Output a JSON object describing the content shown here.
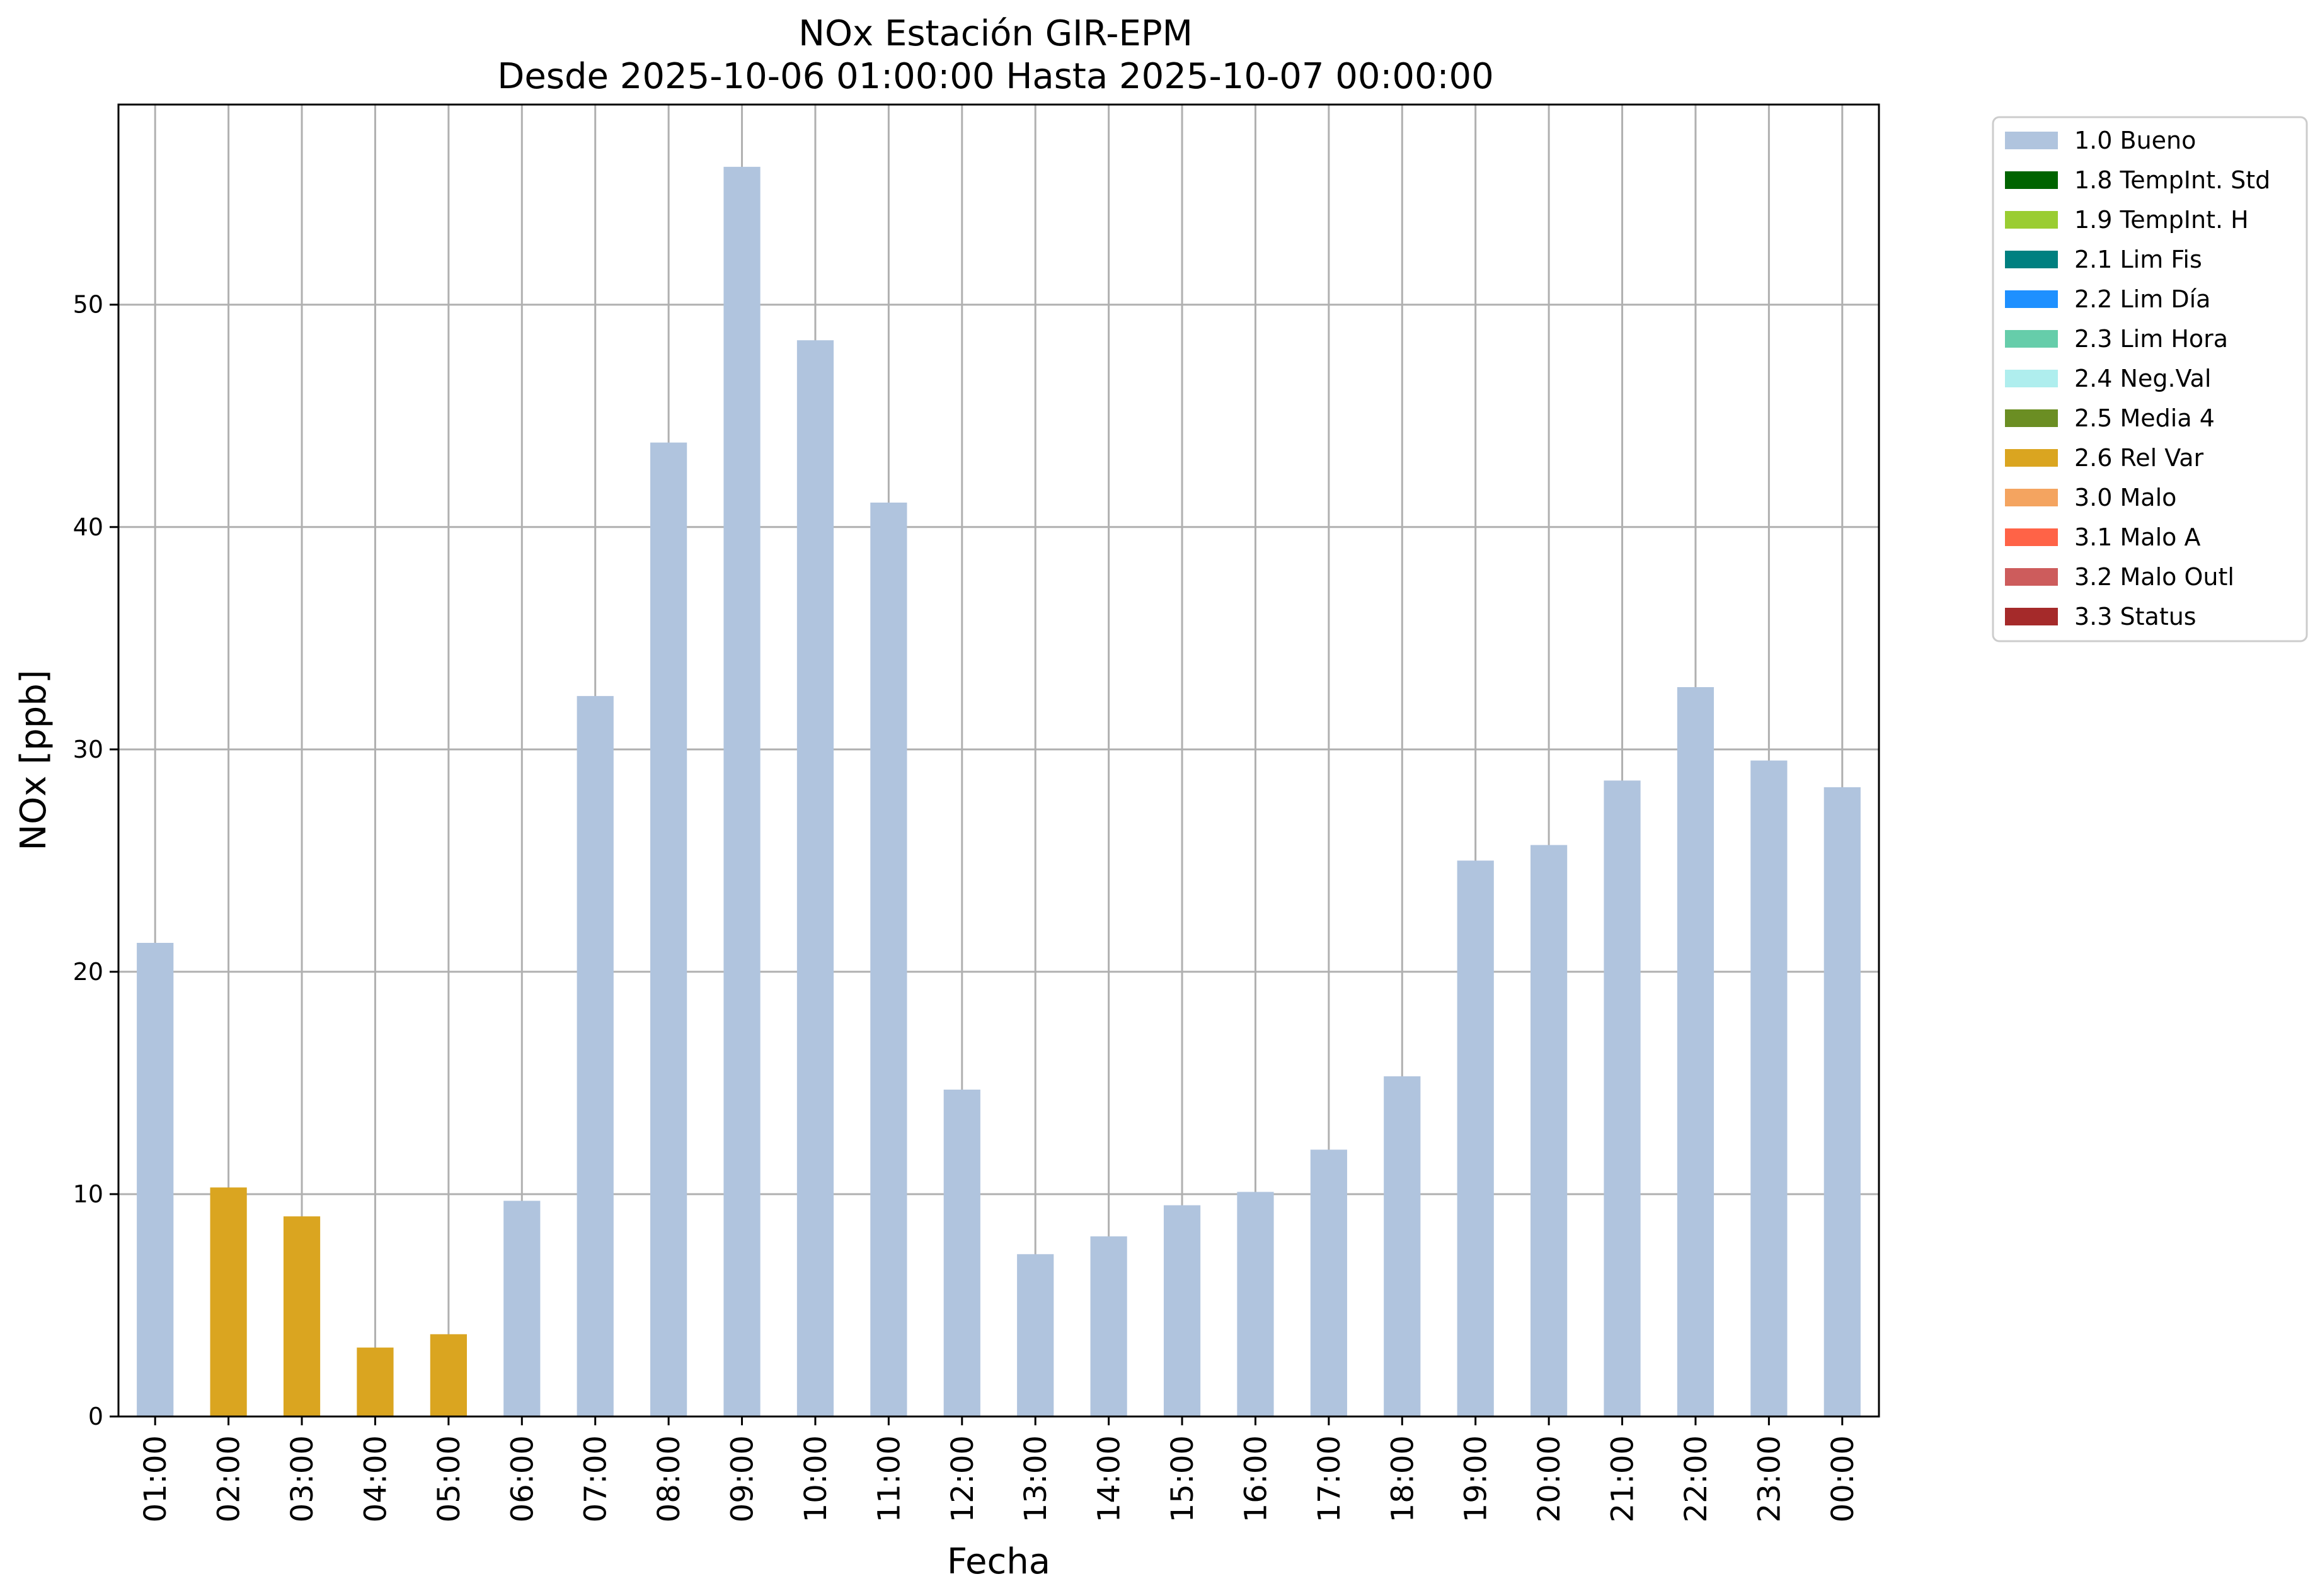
{
  "chart_data": {
    "type": "bar",
    "title": "NOx Estación GIR-EPM",
    "subtitle": "Desde 2025-10-06 01:00:00 Hasta 2025-10-07 00:00:00",
    "xlabel": "Fecha",
    "ylabel": "NOx [ppb]",
    "ylim": [
      0,
      59
    ],
    "yticks": [
      0,
      10,
      20,
      30,
      40,
      50
    ],
    "grid": true,
    "legend_position": "outside-top-right",
    "categories": [
      "01:00",
      "02:00",
      "03:00",
      "04:00",
      "05:00",
      "06:00",
      "07:00",
      "08:00",
      "09:00",
      "10:00",
      "11:00",
      "12:00",
      "13:00",
      "14:00",
      "15:00",
      "16:00",
      "17:00",
      "18:00",
      "19:00",
      "20:00",
      "21:00",
      "22:00",
      "23:00",
      "00:00"
    ],
    "values": [
      21.3,
      10.3,
      9.0,
      3.1,
      3.7,
      9.7,
      32.4,
      43.8,
      56.2,
      48.4,
      41.1,
      14.7,
      7.3,
      8.1,
      9.5,
      10.1,
      12.0,
      15.3,
      25.0,
      25.7,
      28.6,
      32.8,
      29.5,
      28.3
    ],
    "flags": [
      "1.0 Bueno",
      "2.6 Rel Var",
      "2.6 Rel Var",
      "2.6 Rel Var",
      "2.6 Rel Var",
      "1.0 Bueno",
      "1.0 Bueno",
      "1.0 Bueno",
      "1.0 Bueno",
      "1.0 Bueno",
      "1.0 Bueno",
      "1.0 Bueno",
      "1.0 Bueno",
      "1.0 Bueno",
      "1.0 Bueno",
      "1.0 Bueno",
      "1.0 Bueno",
      "1.0 Bueno",
      "1.0 Bueno",
      "1.0 Bueno",
      "1.0 Bueno",
      "1.0 Bueno",
      "1.0 Bueno",
      "1.0 Bueno"
    ],
    "legend": [
      {
        "label": "1.0 Bueno",
        "color": "#b0c4de"
      },
      {
        "label": "1.8 TempInt. Std",
        "color": "#006400"
      },
      {
        "label": "1.9 TempInt. H",
        "color": "#9acd32"
      },
      {
        "label": "2.1 Lim Fis",
        "color": "#008080"
      },
      {
        "label": "2.2 Lim Día",
        "color": "#1e90ff"
      },
      {
        "label": "2.3 Lim Hora",
        "color": "#66cdaa"
      },
      {
        "label": "2.4 Neg.Val",
        "color": "#afeeee"
      },
      {
        "label": "2.5 Media 4",
        "color": "#6b8e23"
      },
      {
        "label": "2.6 Rel Var",
        "color": "#daa520"
      },
      {
        "label": "3.0 Malo",
        "color": "#f4a460"
      },
      {
        "label": "3.1 Malo A",
        "color": "#ff6347"
      },
      {
        "label": "3.2 Malo Outl",
        "color": "#cd5c5c"
      },
      {
        "label": "3.3 Status",
        "color": "#a52a2a"
      }
    ]
  }
}
